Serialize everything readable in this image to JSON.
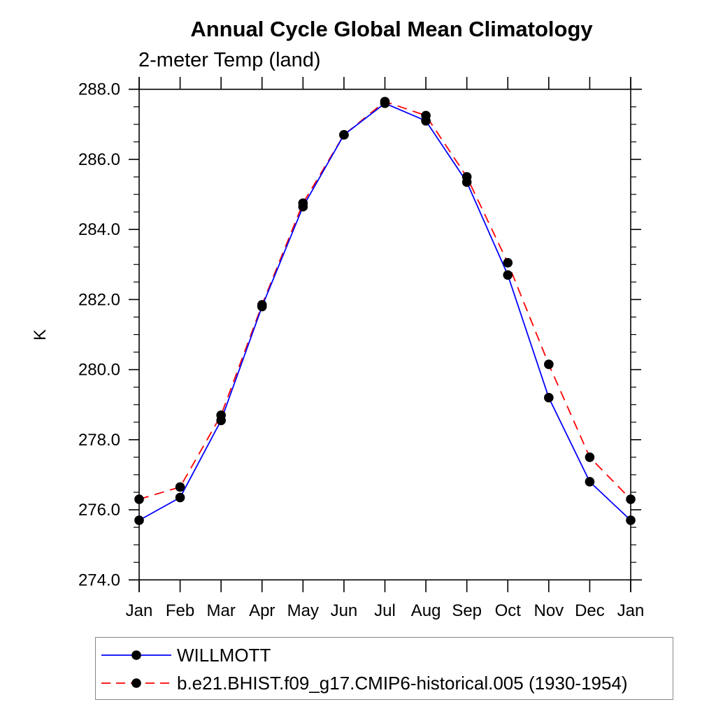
{
  "chart_data": {
    "type": "line",
    "title": "Annual Cycle Global Mean Climatology",
    "subtitle": "2-meter Temp (land)",
    "ylabel": "K",
    "categories": [
      "Jan",
      "Feb",
      "Mar",
      "Apr",
      "May",
      "Jun",
      "Jul",
      "Aug",
      "Sep",
      "Oct",
      "Nov",
      "Dec",
      "Jan"
    ],
    "ylim": [
      274.0,
      288.0
    ],
    "ytick_major": 2.0,
    "ytick_minor": 0.5,
    "ytick_labels": [
      "288.0",
      "286.0",
      "284.0",
      "282.0",
      "280.0",
      "278.0",
      "276.0",
      "274.0"
    ],
    "grid": false,
    "legend_position": "bottom-left",
    "axis_color": "#000000",
    "marker": "filled-circle",
    "marker_color": "#000000",
    "series": [
      {
        "name": "WILLMOTT",
        "color": "#0000ff",
        "style": "solid",
        "values": [
          275.7,
          276.35,
          278.55,
          281.8,
          284.65,
          286.7,
          287.6,
          287.1,
          285.35,
          282.7,
          279.2,
          276.8,
          275.7
        ]
      },
      {
        "name": "b.e21.BHIST.f09_g17.CMIP6-historical.005 (1930-1954)",
        "color": "#ff0000",
        "style": "dashed",
        "values": [
          276.3,
          276.65,
          278.7,
          281.85,
          284.75,
          286.7,
          287.65,
          287.25,
          285.5,
          283.05,
          280.15,
          277.5,
          276.3
        ]
      }
    ]
  }
}
